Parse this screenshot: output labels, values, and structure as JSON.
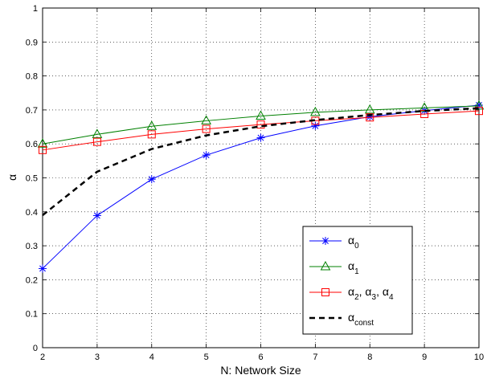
{
  "chart_data": {
    "type": "line",
    "xlabel": "N: Network Size",
    "ylabel": "α",
    "xlim": [
      2,
      10
    ],
    "ylim": [
      0,
      1
    ],
    "x_ticks": [
      "2",
      "3",
      "4",
      "5",
      "6",
      "7",
      "8",
      "9",
      "10"
    ],
    "y_ticks": [
      "0",
      "0.1",
      "0.2",
      "0.3",
      "0.4",
      "0.5",
      "0.6",
      "0.7",
      "0.8",
      "0.9",
      "1"
    ],
    "grid": true,
    "legend_position": "bottom-right",
    "x": [
      2,
      3,
      4,
      5,
      6,
      7,
      8,
      9,
      10
    ],
    "series": [
      {
        "name": "α_0",
        "label_base": "α",
        "label_sub": "0",
        "color": "#0000ff",
        "marker": "asterisk",
        "line": "solid",
        "values": [
          0.233,
          0.389,
          0.496,
          0.567,
          0.618,
          0.653,
          0.68,
          0.698,
          0.714
        ]
      },
      {
        "name": "α_1",
        "label_base": "α",
        "label_sub": "1",
        "color": "#008000",
        "marker": "triangle",
        "line": "solid",
        "values": [
          0.6,
          0.628,
          0.652,
          0.668,
          0.682,
          0.693,
          0.7,
          0.706,
          0.712
        ]
      },
      {
        "name": "α_2, α_3, α_4",
        "label_base": "α",
        "label_sub": "2",
        "label_extra": [
          {
            "sub": "3"
          },
          {
            "sub": "4"
          }
        ],
        "color": "#ff0000",
        "marker": "square",
        "line": "solid",
        "values": [
          0.582,
          0.606,
          0.628,
          0.644,
          0.657,
          0.668,
          0.678,
          0.688,
          0.697
        ]
      },
      {
        "name": "α_const",
        "label_base": "α",
        "label_sub": "const",
        "color": "#000000",
        "marker": "none",
        "line": "dashed",
        "values": [
          0.39,
          0.518,
          0.585,
          0.625,
          0.652,
          0.67,
          0.685,
          0.697,
          0.705
        ]
      }
    ]
  }
}
